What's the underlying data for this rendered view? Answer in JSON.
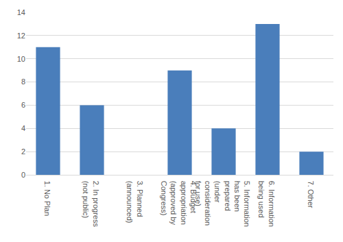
{
  "chart_data": {
    "type": "bar",
    "categories": [
      "1. No Plan",
      "2. In progress (not public)",
      "3. Planned (announced)",
      "4. Budget appropriation (approved by Congress)",
      "5. Information has been prepared (under consideration for use)",
      "6. Information being used",
      "7. Other"
    ],
    "values": [
      11,
      6,
      0,
      9,
      4,
      13,
      2
    ],
    "color": "#4a7ebb",
    "ylim": [
      0,
      14
    ],
    "yticks": [
      0,
      2,
      4,
      6,
      8,
      10,
      12,
      14
    ],
    "grid": true
  }
}
